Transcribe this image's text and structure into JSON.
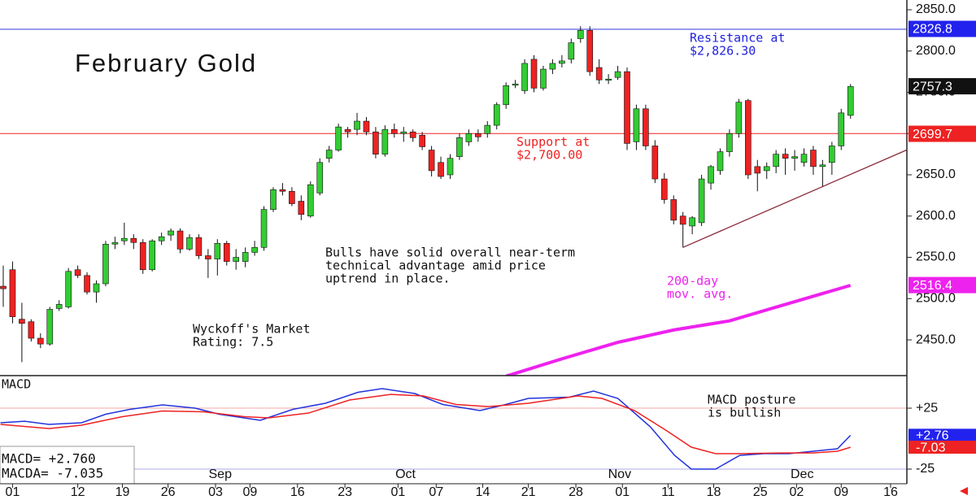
{
  "chart_data": {
    "type": "candlestick",
    "title": "February Gold",
    "up_color": "#33cc33",
    "down_color": "#ee2222",
    "open": [
      2515,
      2535,
      2475,
      2472,
      2452,
      2445,
      2488,
      2490,
      2535,
      2528,
      2508,
      2518,
      2566,
      2570,
      2573,
      2568,
      2535,
      2570,
      2577,
      2582,
      2560,
      2574,
      2552,
      2548,
      2567,
      2545,
      2545,
      2556,
      2562,
      2608,
      2632,
      2630,
      2618,
      2600,
      2628,
      2670,
      2680,
      2705,
      2705,
      2715,
      2702,
      2675,
      2705,
      2700,
      2702,
      2698,
      2680,
      2665,
      2650,
      2672,
      2690,
      2700,
      2700,
      2710,
      2735,
      2760,
      2752,
      2790,
      2755,
      2778,
      2785,
      2790,
      2815,
      2825,
      2780,
      2766,
      2768,
      2775,
      2690,
      2730,
      2685,
      2645,
      2620,
      2600,
      2588,
      2592,
      2640,
      2655,
      2678,
      2700,
      2740,
      2660,
      2655,
      2660,
      2675,
      2670,
      2665,
      2680,
      2660,
      2665,
      2685,
      2722
    ],
    "high": [
      2540,
      2545,
      2495,
      2475,
      2458,
      2490,
      2498,
      2537,
      2540,
      2532,
      2522,
      2570,
      2575,
      2592,
      2578,
      2572,
      2572,
      2580,
      2585,
      2585,
      2578,
      2578,
      2560,
      2572,
      2570,
      2560,
      2562,
      2570,
      2612,
      2635,
      2640,
      2635,
      2625,
      2642,
      2670,
      2685,
      2712,
      2708,
      2725,
      2720,
      2708,
      2710,
      2712,
      2708,
      2705,
      2702,
      2685,
      2672,
      2675,
      2700,
      2705,
      2705,
      2715,
      2738,
      2762,
      2765,
      2790,
      2795,
      2782,
      2790,
      2795,
      2815,
      2830,
      2830,
      2790,
      2772,
      2782,
      2780,
      2735,
      2735,
      2692,
      2652,
      2625,
      2605,
      2600,
      2650,
      2662,
      2682,
      2705,
      2742,
      2742,
      2668,
      2665,
      2680,
      2682,
      2680,
      2682,
      2685,
      2668,
      2690,
      2730,
      2760
    ],
    "low": [
      2490,
      2470,
      2423,
      2448,
      2440,
      2443,
      2485,
      2488,
      2525,
      2505,
      2495,
      2515,
      2560,
      2565,
      2560,
      2530,
      2533,
      2565,
      2570,
      2555,
      2558,
      2548,
      2525,
      2528,
      2540,
      2535,
      2538,
      2552,
      2558,
      2605,
      2625,
      2612,
      2595,
      2598,
      2625,
      2665,
      2678,
      2695,
      2698,
      2698,
      2670,
      2672,
      2695,
      2690,
      2690,
      2680,
      2648,
      2645,
      2645,
      2668,
      2685,
      2690,
      2695,
      2705,
      2730,
      2755,
      2748,
      2750,
      2752,
      2772,
      2780,
      2785,
      2810,
      2770,
      2760,
      2760,
      2765,
      2680,
      2680,
      2680,
      2640,
      2615,
      2590,
      2562,
      2578,
      2588,
      2632,
      2650,
      2672,
      2695,
      2645,
      2630,
      2645,
      2652,
      2650,
      2655,
      2660,
      2650,
      2636,
      2650,
      2680,
      2718
    ],
    "close": [
      2512,
      2478,
      2470,
      2452,
      2445,
      2487,
      2493,
      2533,
      2528,
      2508,
      2518,
      2566,
      2568,
      2573,
      2568,
      2535,
      2570,
      2575,
      2582,
      2560,
      2574,
      2552,
      2548,
      2567,
      2545,
      2550,
      2556,
      2562,
      2608,
      2632,
      2630,
      2615,
      2602,
      2638,
      2665,
      2680,
      2708,
      2702,
      2715,
      2702,
      2675,
      2705,
      2700,
      2702,
      2695,
      2684,
      2655,
      2648,
      2670,
      2695,
      2700,
      2696,
      2710,
      2735,
      2758,
      2760,
      2785,
      2755,
      2778,
      2785,
      2788,
      2810,
      2825,
      2775,
      2765,
      2766,
      2775,
      2688,
      2730,
      2685,
      2645,
      2620,
      2595,
      2590,
      2598,
      2645,
      2660,
      2678,
      2700,
      2738,
      2650,
      2652,
      2660,
      2675,
      2670,
      2672,
      2675,
      2660,
      2662,
      2685,
      2725,
      2757
    ],
    "xlim": [
      -0.35,
      97.05
    ],
    "ylim": [
      2406.7,
      2861.8
    ],
    "yticks": [
      {
        "value": 2450,
        "label": "2450.0"
      },
      {
        "value": 2500,
        "label": "2500.0"
      },
      {
        "value": 2550,
        "label": "2550.0"
      },
      {
        "value": 2600,
        "label": "2600.0"
      },
      {
        "value": 2650,
        "label": "2650.0"
      },
      {
        "value": 2700,
        "label": "2700.0"
      },
      {
        "value": 2750,
        "label": "2750.0"
      },
      {
        "value": 2800,
        "label": "2800.0"
      },
      {
        "value": 2850,
        "label": "2850.0"
      }
    ],
    "xticks": [
      {
        "value": 1,
        "label": "01"
      },
      {
        "value": 8,
        "label": "12"
      },
      {
        "value": 12.8,
        "label": "19"
      },
      {
        "value": 17.7,
        "label": "26"
      },
      {
        "value": 22.8,
        "label": "03"
      },
      {
        "value": 26.5,
        "label": "09"
      },
      {
        "value": 31.6,
        "label": "16"
      },
      {
        "value": 36.7,
        "label": "23"
      },
      {
        "value": 42.4,
        "label": "01"
      },
      {
        "value": 46.5,
        "label": "07"
      },
      {
        "value": 51.5,
        "label": "14"
      },
      {
        "value": 56.4,
        "label": "21"
      },
      {
        "value": 61.5,
        "label": "28"
      },
      {
        "value": 66.5,
        "label": "01"
      },
      {
        "value": 71.4,
        "label": "11"
      },
      {
        "value": 76.3,
        "label": "18"
      },
      {
        "value": 81.3,
        "label": "25"
      },
      {
        "value": 85.2,
        "label": "02"
      },
      {
        "value": 90,
        "label": "09"
      },
      {
        "value": 95.3,
        "label": "16"
      }
    ],
    "months": [
      {
        "value": 23.3,
        "label": "Sep"
      },
      {
        "value": 43.2,
        "label": "Oct"
      },
      {
        "value": 66.2,
        "label": "Nov"
      },
      {
        "value": 85.8,
        "label": "Dec"
      }
    ],
    "levels": [
      {
        "value": 2826.3,
        "color": "#3333dd"
      },
      {
        "value": 2700,
        "color": "#ee2222"
      }
    ],
    "price_flags": [
      {
        "value": 2826.8,
        "color": "#2222ee"
      },
      {
        "value": 2757.3,
        "color": "#111111"
      },
      {
        "value": 2699.7,
        "color": "#ee2222"
      },
      {
        "value": 2516.4,
        "color": "#ee22ee"
      }
    ],
    "ma": {
      "color": "#ee22ee",
      "x": [
        54,
        60,
        66,
        72,
        78,
        84,
        91
      ],
      "values": [
        2406,
        2427,
        2447,
        2462,
        2473,
        2493,
        2516
      ]
    },
    "trendline": {
      "color": "#8b2a3a",
      "x": [
        73,
        97
      ],
      "values": [
        2562,
        2680
      ]
    },
    "annotations": [
      {
        "color": "#2222dd",
        "lines": [
          "Resistance at",
          "$2,826.30"
        ]
      },
      {
        "color": "#ee2222",
        "lines": [
          "Support at",
          "$2,700.00"
        ]
      },
      {
        "color": "#111111",
        "lines": [
          "Bulls have solid overall near-term",
          "technical advantage amid price",
          "uptrend in place."
        ]
      },
      {
        "color": "#ee22ee",
        "lines": [
          "200-day",
          "mov. avg."
        ]
      },
      {
        "color": "#111111",
        "lines": [
          "Wyckoff's Market",
          "Rating: 7.5"
        ]
      }
    ],
    "macd": {
      "title": "MACD",
      "ylim": [
        -37,
        51.7
      ],
      "yticks": [
        {
          "value": 25,
          "label": "+25",
          "color": "#f2aaaa"
        },
        {
          "value": -25,
          "label": "-25",
          "color": "#aaaaee"
        }
      ],
      "series": [
        {
          "color": "#2233dd",
          "x": [
            -0.3,
            2.3,
            4.9,
            8.4,
            11,
            13.6,
            17.1,
            20.6,
            23.2,
            27.6,
            31.1,
            34.6,
            38.1,
            40.7,
            44.2,
            47.2,
            51.2,
            53.8,
            56.4,
            60.8,
            63.4,
            66,
            67.8,
            69.5,
            72.1,
            73.9,
            76.5,
            79.1,
            81.7,
            84.4,
            87,
            89.6,
            91
          ],
          "values": [
            13,
            14.3,
            11.7,
            13,
            20,
            24,
            27.7,
            25,
            20,
            15,
            24,
            29,
            38,
            41,
            37,
            28,
            23,
            27.7,
            33,
            34,
            39,
            33,
            21,
            9.7,
            -13.7,
            -25,
            -25,
            -13.7,
            -12.3,
            -12.3,
            -10.3,
            -8.3,
            2.76
          ]
        },
        {
          "color": "#ee2222",
          "x": [
            -0.3,
            4.9,
            8.4,
            12.8,
            17.1,
            21.5,
            25.9,
            28.5,
            32.8,
            37.2,
            41.6,
            45.1,
            48.6,
            52.1,
            56.4,
            61.7,
            64.3,
            67.8,
            71.3,
            73.9,
            76.5,
            79.1,
            83.5,
            87,
            89.6,
            91
          ],
          "values": [
            11.7,
            8.3,
            11,
            18,
            22.7,
            22,
            18,
            17,
            21,
            31.7,
            36.3,
            35,
            28,
            26.3,
            29,
            35,
            33,
            23,
            6.3,
            -7,
            -12.3,
            -12.3,
            -11.7,
            -11.7,
            -10.3,
            -7.03
          ]
        }
      ],
      "flags": [
        {
          "value": 2.76,
          "label": "+2.76",
          "color": "#2222ee"
        },
        {
          "value": -7.03,
          "label": "-7.03",
          "color": "#ee2222"
        }
      ],
      "annotation": [
        "MACD posture",
        "is bullish"
      ],
      "readouts": [
        "MACD=  +2.760",
        "MACDA= -7.035"
      ]
    }
  }
}
